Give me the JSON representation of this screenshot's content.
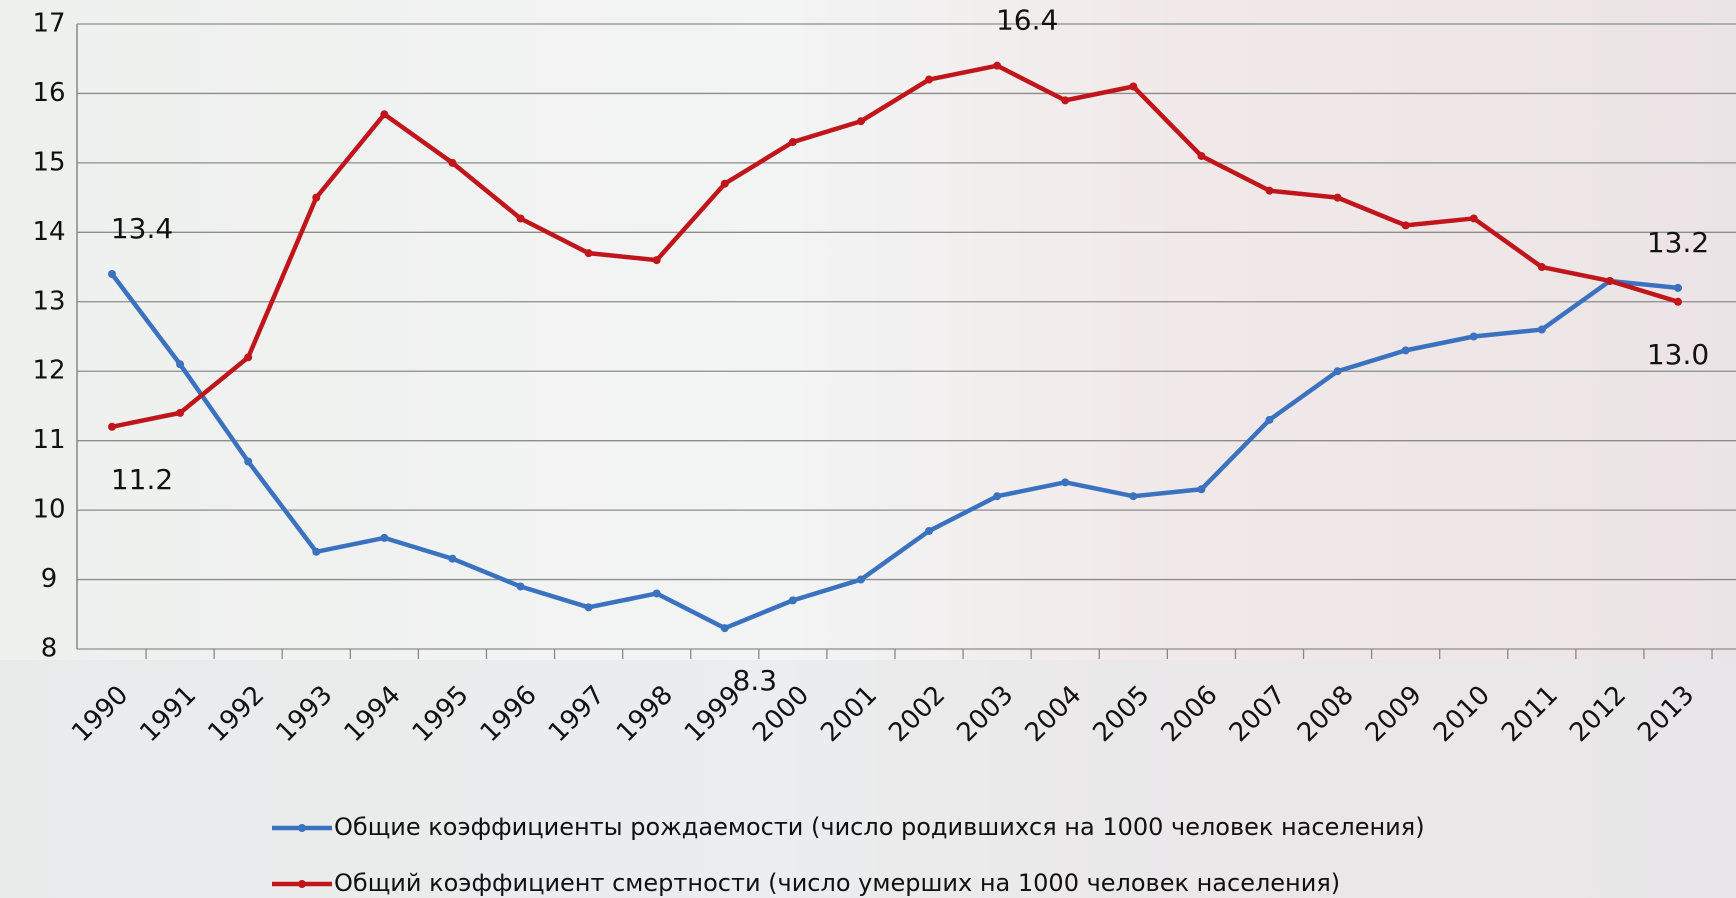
{
  "chart_data": {
    "type": "line",
    "categories": [
      "1990",
      "1991",
      "1992",
      "1993",
      "1994",
      "1995",
      "1996",
      "1997",
      "1998",
      "1999",
      "2000",
      "2001",
      "2002",
      "2003",
      "2004",
      "2005",
      "2006",
      "2007",
      "2008",
      "2009",
      "2010",
      "2011",
      "2012",
      "2013"
    ],
    "series": [
      {
        "name": "Общие коэффициенты рождаемости (число родившихся на 1000 человек населения)",
        "color": "#3a72c0",
        "values": [
          13.4,
          12.1,
          10.7,
          9.4,
          9.6,
          9.3,
          8.9,
          8.6,
          8.8,
          8.3,
          8.7,
          9.0,
          9.7,
          10.2,
          10.4,
          10.2,
          10.3,
          11.3,
          12.0,
          12.3,
          12.5,
          12.6,
          13.3,
          13.2
        ],
        "value_labels": [
          "13.4",
          null,
          null,
          null,
          null,
          null,
          null,
          null,
          null,
          "8.3",
          null,
          null,
          null,
          null,
          null,
          null,
          null,
          null,
          null,
          null,
          null,
          null,
          null,
          "13.2"
        ]
      },
      {
        "name": "Общий коэффициент смертности (число умерших на 1000 человек населения)",
        "color": "#c0161b",
        "values": [
          11.2,
          11.4,
          12.2,
          14.5,
          15.7,
          15.0,
          14.2,
          13.7,
          13.6,
          14.7,
          15.3,
          15.6,
          16.2,
          16.4,
          15.9,
          16.1,
          15.1,
          14.6,
          14.5,
          14.1,
          14.2,
          13.5,
          13.3,
          13.0
        ],
        "value_labels": [
          "11.2",
          null,
          null,
          null,
          null,
          null,
          null,
          null,
          null,
          null,
          null,
          null,
          null,
          "16.4",
          null,
          null,
          null,
          null,
          null,
          null,
          null,
          null,
          null,
          "13.0"
        ]
      }
    ],
    "ylim": [
      8,
      17
    ],
    "yticks": [
      8,
      9,
      10,
      11,
      12,
      13,
      14,
      15,
      16,
      17
    ],
    "grid": true,
    "legend": "bottom"
  }
}
